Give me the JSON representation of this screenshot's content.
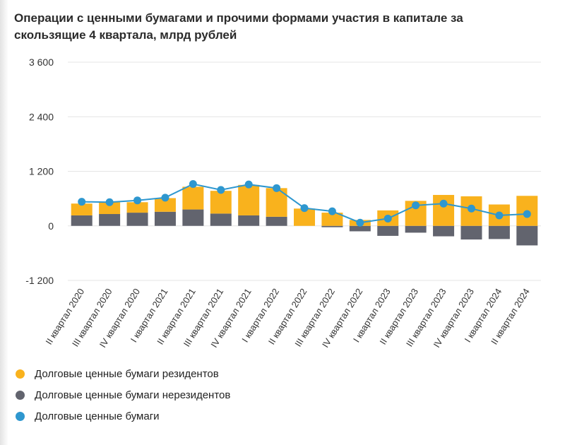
{
  "header": {
    "title": "Операции с ценными бумагами и прочими формами участия в капитале за скользящие 4 квартала, млрд рублей"
  },
  "colors": {
    "residents": "#F9B21D",
    "nonresidents": "#62646E",
    "total": "#2E97CF",
    "grid": "#E4E4E4"
  },
  "chart_data": {
    "type": "bar",
    "stacked": true,
    "title": "Операции с ценными бумагами и прочими формами участия в капитале за скользящие 4 квартала, млрд рублей",
    "ylim": [
      -1200,
      3600
    ],
    "yticks": [
      3600,
      2400,
      1200,
      0,
      -1200
    ],
    "ytick_labels": [
      "3 600",
      "2 400",
      "1 200",
      "0",
      "-1 200"
    ],
    "grid": true,
    "legend_position": "bottom-left",
    "categories": [
      "II квартал 2020",
      "III квартал 2020",
      "IV квартал 2020",
      "I квартал 2021",
      "II квартал 2021",
      "III квартал 2021",
      "IV квартал 2021",
      "I квартал 2022",
      "II квартал 2022",
      "III квартал 2022",
      "IV квартал 2022",
      "I квартал 2023",
      "II квартал 2023",
      "III квартал 2023",
      "IV квартал 2023",
      "I квартал 2024",
      "II квартал 2024"
    ],
    "series": [
      {
        "name": "Долговые ценные бумаги резидентов",
        "kind": "bar",
        "values": [
          260,
          260,
          230,
          300,
          500,
          500,
          670,
          630,
          380,
          290,
          130,
          340,
          550,
          680,
          650,
          470,
          660
        ]
      },
      {
        "name": "Долговые ценные бумаги нерезидентов",
        "kind": "bar",
        "values": [
          230,
          260,
          290,
          310,
          360,
          270,
          230,
          200,
          0,
          -30,
          -120,
          -220,
          -150,
          -230,
          -300,
          -290,
          -430
        ]
      },
      {
        "name": "Долговые ценные бумаги",
        "kind": "line",
        "values": [
          530,
          520,
          560,
          620,
          920,
          790,
          910,
          830,
          390,
          320,
          70,
          160,
          450,
          490,
          380,
          230,
          260
        ]
      }
    ]
  }
}
